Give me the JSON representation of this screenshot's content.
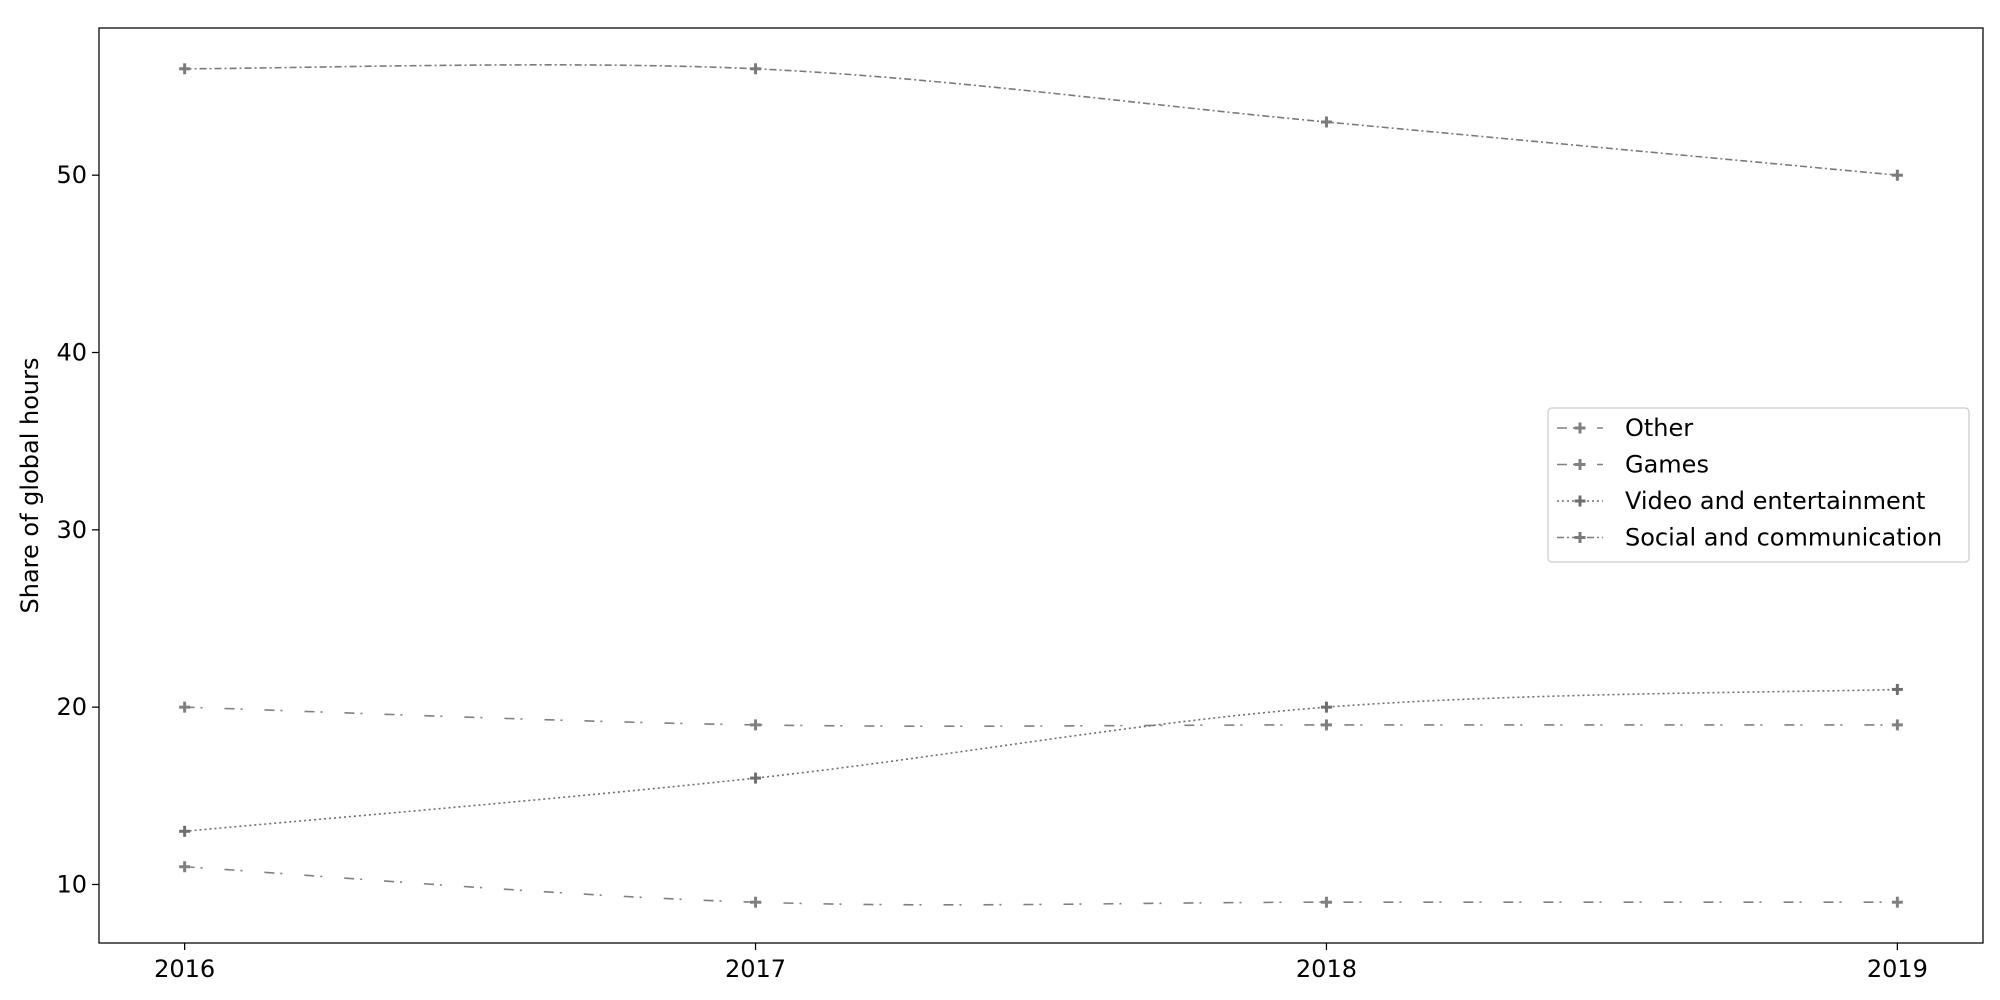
{
  "chart_data": {
    "type": "line",
    "title": "",
    "xlabel": "",
    "ylabel": "Share of global hours",
    "x": [
      "2016",
      "2017",
      "2018",
      "2019"
    ],
    "xlim": [
      2015.85,
      2019.15
    ],
    "ylim": [
      6.7,
      58.3
    ],
    "yticks": [
      10,
      20,
      30,
      40,
      50
    ],
    "grid": false,
    "legend_position": "center-right",
    "series": [
      {
        "name": "Other",
        "values": [
          20,
          19,
          19,
          19
        ],
        "dash": "dashdot-loose",
        "color": "#808080",
        "marker": "plus"
      },
      {
        "name": "Games",
        "values": [
          11,
          9,
          9,
          9
        ],
        "dash": "dashdot-loose",
        "color": "#808080",
        "marker": "plus"
      },
      {
        "name": "Video and entertainment",
        "values": [
          13,
          16,
          20,
          21
        ],
        "dash": "dotted",
        "color": "#6e6e6e",
        "marker": "plus"
      },
      {
        "name": "Social and communication",
        "values": [
          56,
          56,
          53,
          50
        ],
        "dash": "dashdot",
        "color": "#7a7a7a",
        "marker": "plus"
      }
    ]
  }
}
